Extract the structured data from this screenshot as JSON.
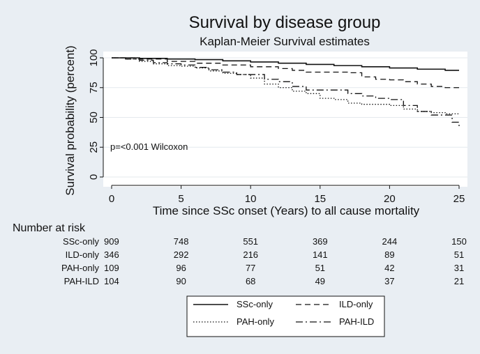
{
  "chart_data": {
    "type": "line",
    "title": "Survival by disease group",
    "subtitle": "Kaplan-Meier Survival estimates",
    "xlabel": "Time since SSc onset (Years) to all cause mortality",
    "ylabel": "Survival probability (percent)",
    "xlim": [
      0,
      25
    ],
    "ylim": [
      0,
      100
    ],
    "xticks": [
      0,
      5,
      10,
      15,
      20,
      25
    ],
    "yticks": [
      0,
      25,
      50,
      75,
      100
    ],
    "grid": "horizontal",
    "annotation": "p=<0.001 Wilcoxon",
    "legend_position": "bottom",
    "series": [
      {
        "name": "SSc-only",
        "style": "solid",
        "x": [
          0,
          2,
          4,
          6,
          8,
          10,
          12,
          14,
          16,
          18,
          20,
          22,
          24,
          25
        ],
        "y": [
          100,
          99.5,
          99,
          98.5,
          97.5,
          96.5,
          95.5,
          94.5,
          93.5,
          92.5,
          91.5,
          90.5,
          89.5,
          89.5
        ]
      },
      {
        "name": "ILD-only",
        "style": "dashed",
        "x": [
          0,
          2,
          4,
          6,
          8,
          10,
          12,
          13,
          14,
          15,
          17,
          18,
          19,
          20,
          21,
          22,
          23,
          24,
          25
        ],
        "y": [
          100,
          99,
          97,
          95.5,
          94,
          92.5,
          91,
          89.5,
          88,
          88,
          87.5,
          84,
          82,
          81.5,
          80,
          78,
          76,
          75,
          75
        ]
      },
      {
        "name": "PAH-only",
        "style": "dotted",
        "x": [
          0,
          1,
          2,
          3,
          4,
          5,
          6,
          7,
          8,
          9,
          10,
          11,
          12,
          13,
          14,
          15,
          16,
          17,
          18,
          19,
          20,
          21,
          22,
          23,
          24,
          25
        ],
        "y": [
          100,
          99,
          97,
          95,
          93.5,
          93,
          91.5,
          89,
          87,
          86,
          83,
          78,
          75,
          72,
          70,
          66,
          65,
          62,
          61,
          61,
          60,
          57,
          55,
          54,
          53,
          53
        ]
      },
      {
        "name": "PAH-ILD",
        "style": "dashdot",
        "x": [
          0,
          1,
          2,
          3,
          4,
          5,
          6,
          7,
          8,
          9,
          10,
          11,
          12,
          13,
          14,
          15,
          16,
          17,
          18,
          19,
          20,
          21,
          22,
          23,
          24,
          24.5,
          25
        ],
        "y": [
          100,
          99,
          98,
          96,
          95,
          94,
          92,
          90,
          88,
          86,
          86,
          82,
          80,
          76,
          73,
          73,
          73,
          70,
          68,
          66,
          65,
          60,
          55,
          52,
          52,
          46,
          42
        ]
      }
    ],
    "risk_table": {
      "title": "Number at risk",
      "times": [
        0,
        5,
        10,
        15,
        20,
        25
      ],
      "rows": [
        {
          "label": "SSc-only",
          "values": [
            909,
            748,
            551,
            369,
            244,
            150
          ]
        },
        {
          "label": "ILD-only",
          "values": [
            346,
            292,
            216,
            141,
            89,
            51
          ]
        },
        {
          "label": "PAH-only",
          "values": [
            109,
            96,
            77,
            51,
            42,
            31
          ]
        },
        {
          "label": "PAH-ILD",
          "values": [
            104,
            90,
            68,
            49,
            37,
            21
          ]
        }
      ]
    },
    "colors": {
      "background": "#e9eef3",
      "plot_bg": "#ffffff",
      "line": "#111111",
      "grid": "#e4e9ee"
    }
  }
}
